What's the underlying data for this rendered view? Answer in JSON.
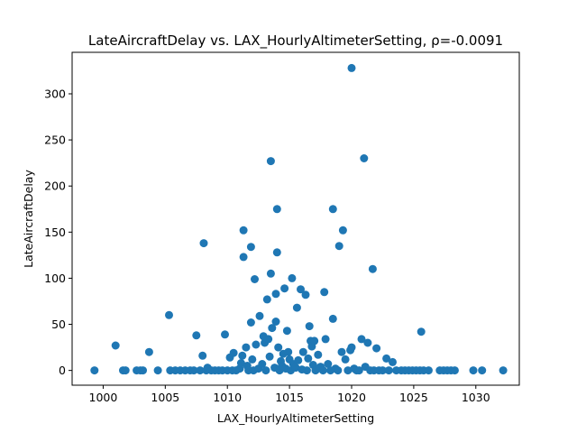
{
  "chart_data": {
    "type": "scatter",
    "title": "LateAircraftDelay vs. LAX_HourlyAltimeterSetting, ρ=-0.0091",
    "xlabel": "LAX_HourlyAltimeterSetting",
    "ylabel": "LateAircraftDelay",
    "xlim": [
      997.5,
      1033.5
    ],
    "ylim": [
      -16,
      345
    ],
    "xticks": [
      1000,
      1005,
      1010,
      1015,
      1020,
      1025,
      1030
    ],
    "yticks": [
      0,
      50,
      100,
      150,
      200,
      250,
      300
    ],
    "grid": false,
    "marker_color": "#1f77b4",
    "series": [
      {
        "points": [
          [
            999.3,
            0
          ],
          [
            1001.0,
            27
          ],
          [
            1001.6,
            0
          ],
          [
            1001.8,
            0
          ],
          [
            1002.7,
            0
          ],
          [
            1003.0,
            0
          ],
          [
            1003.2,
            0
          ],
          [
            1003.7,
            20
          ],
          [
            1004.4,
            0
          ],
          [
            1005.3,
            60
          ],
          [
            1005.4,
            0
          ],
          [
            1005.8,
            0
          ],
          [
            1006.2,
            0
          ],
          [
            1006.6,
            0
          ],
          [
            1007.0,
            0
          ],
          [
            1007.3,
            0
          ],
          [
            1007.5,
            38
          ],
          [
            1007.8,
            0
          ],
          [
            1008.0,
            16
          ],
          [
            1008.1,
            138
          ],
          [
            1008.3,
            0
          ],
          [
            1008.4,
            3
          ],
          [
            1008.7,
            0
          ],
          [
            1009.0,
            0
          ],
          [
            1009.3,
            0
          ],
          [
            1009.6,
            0
          ],
          [
            1009.8,
            39
          ],
          [
            1010.0,
            0
          ],
          [
            1010.2,
            14
          ],
          [
            1010.4,
            0
          ],
          [
            1010.5,
            19
          ],
          [
            1010.7,
            0
          ],
          [
            1011.0,
            2
          ],
          [
            1011.1,
            8
          ],
          [
            1011.2,
            16
          ],
          [
            1011.3,
            123
          ],
          [
            1011.3,
            152
          ],
          [
            1011.5,
            25
          ],
          [
            1011.6,
            5
          ],
          [
            1011.7,
            0
          ],
          [
            1011.9,
            52
          ],
          [
            1011.9,
            134
          ],
          [
            1012.0,
            12
          ],
          [
            1012.1,
            0
          ],
          [
            1012.2,
            99
          ],
          [
            1012.3,
            28
          ],
          [
            1012.5,
            2
          ],
          [
            1012.6,
            59
          ],
          [
            1012.8,
            7
          ],
          [
            1012.9,
            37
          ],
          [
            1013.0,
            30
          ],
          [
            1013.1,
            0
          ],
          [
            1013.2,
            77
          ],
          [
            1013.3,
            34
          ],
          [
            1013.4,
            15
          ],
          [
            1013.5,
            227
          ],
          [
            1013.5,
            105
          ],
          [
            1013.6,
            46
          ],
          [
            1013.8,
            3
          ],
          [
            1013.9,
            53
          ],
          [
            1013.9,
            83
          ],
          [
            1014.0,
            175
          ],
          [
            1014.0,
            128
          ],
          [
            1014.1,
            25
          ],
          [
            1014.2,
            0
          ],
          [
            1014.3,
            10
          ],
          [
            1014.4,
            5
          ],
          [
            1014.5,
            18
          ],
          [
            1014.6,
            89
          ],
          [
            1014.7,
            2
          ],
          [
            1014.8,
            43
          ],
          [
            1014.9,
            20
          ],
          [
            1015.0,
            12
          ],
          [
            1015.1,
            0
          ],
          [
            1015.2,
            100
          ],
          [
            1015.3,
            7
          ],
          [
            1015.5,
            3
          ],
          [
            1015.6,
            68
          ],
          [
            1015.7,
            11
          ],
          [
            1015.9,
            88
          ],
          [
            1016.0,
            1
          ],
          [
            1016.1,
            20
          ],
          [
            1016.3,
            82
          ],
          [
            1016.4,
            0
          ],
          [
            1016.5,
            13
          ],
          [
            1016.6,
            48
          ],
          [
            1016.7,
            32
          ],
          [
            1016.8,
            26
          ],
          [
            1016.9,
            6
          ],
          [
            1017.0,
            32
          ],
          [
            1017.1,
            0
          ],
          [
            1017.3,
            17
          ],
          [
            1017.5,
            4
          ],
          [
            1017.7,
            0
          ],
          [
            1017.8,
            85
          ],
          [
            1017.9,
            34
          ],
          [
            1018.1,
            7
          ],
          [
            1018.3,
            0
          ],
          [
            1018.5,
            56
          ],
          [
            1018.5,
            175
          ],
          [
            1018.7,
            2
          ],
          [
            1018.9,
            0
          ],
          [
            1019.0,
            135
          ],
          [
            1019.2,
            20
          ],
          [
            1019.3,
            152
          ],
          [
            1019.5,
            12
          ],
          [
            1019.7,
            0
          ],
          [
            1019.9,
            22
          ],
          [
            1020.0,
            25
          ],
          [
            1020.0,
            328
          ],
          [
            1020.2,
            2
          ],
          [
            1020.4,
            0
          ],
          [
            1020.6,
            0
          ],
          [
            1020.8,
            34
          ],
          [
            1021.0,
            230
          ],
          [
            1021.1,
            4
          ],
          [
            1021.3,
            30
          ],
          [
            1021.5,
            0
          ],
          [
            1021.7,
            110
          ],
          [
            1021.8,
            0
          ],
          [
            1022.0,
            24
          ],
          [
            1022.2,
            0
          ],
          [
            1022.5,
            0
          ],
          [
            1022.8,
            13
          ],
          [
            1023.0,
            0
          ],
          [
            1023.3,
            9
          ],
          [
            1023.6,
            0
          ],
          [
            1024.0,
            0
          ],
          [
            1024.3,
            0
          ],
          [
            1024.6,
            0
          ],
          [
            1024.9,
            0
          ],
          [
            1025.2,
            0
          ],
          [
            1025.5,
            0
          ],
          [
            1025.6,
            42
          ],
          [
            1025.8,
            0
          ],
          [
            1026.2,
            0
          ],
          [
            1027.1,
            0
          ],
          [
            1027.4,
            0
          ],
          [
            1027.7,
            0
          ],
          [
            1028.0,
            0
          ],
          [
            1028.3,
            0
          ],
          [
            1029.8,
            0
          ],
          [
            1030.5,
            0
          ],
          [
            1032.2,
            0
          ]
        ]
      }
    ]
  }
}
